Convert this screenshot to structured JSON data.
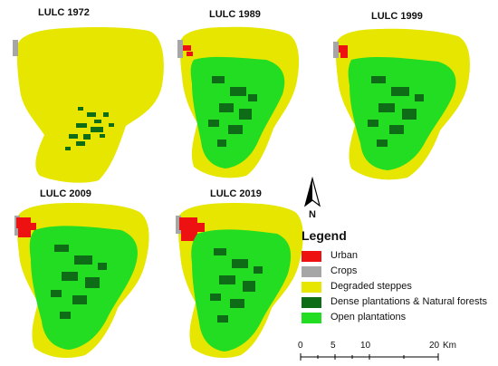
{
  "maps": [
    {
      "title": "LULC 1972"
    },
    {
      "title": "LULC 1989"
    },
    {
      "title": "LULC 1999"
    },
    {
      "title": "LULC 2009"
    },
    {
      "title": "LULC 2019"
    }
  ],
  "north_arrow": {
    "label": "N"
  },
  "legend": {
    "title": "Legend",
    "items": [
      {
        "label": "Urban",
        "color": "#ee1111"
      },
      {
        "label": "Crops",
        "color": "#a6a6a6"
      },
      {
        "label": "Degraded steppes",
        "color": "#e6e600"
      },
      {
        "label": "Dense plantations & Natural forests",
        "color": "#0e6b16"
      },
      {
        "label": "Open plantations",
        "color": "#22dd22"
      }
    ]
  },
  "scale_bar": {
    "ticks": [
      "0",
      "5",
      "10",
      "20"
    ],
    "unit": "Km"
  }
}
